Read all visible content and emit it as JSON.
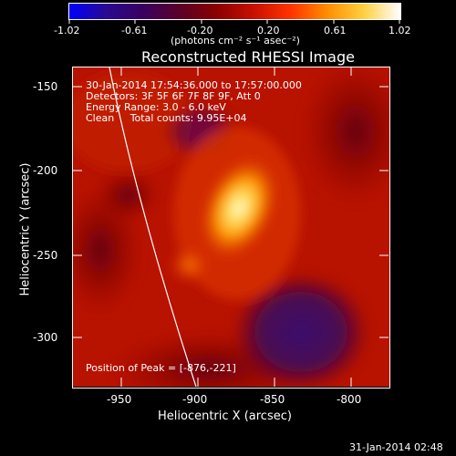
{
  "colorbar": {
    "tick_labels": [
      "-1.02",
      "-0.61",
      "-0.20",
      "0.20",
      "0.61",
      "1.02"
    ],
    "unit_label": "(photons cm⁻² s⁻¹ asec⁻²)",
    "stops": [
      "#0000ff",
      "#2a0a90",
      "#3a0060",
      "#5a0028",
      "#8a0000",
      "#c81000",
      "#ff3200",
      "#ff8c00",
      "#ffd040",
      "#ffffff"
    ]
  },
  "image": {
    "title": "Reconstructed RHESSI Image",
    "info_lines": [
      "30-Jan-2014 17:54:36.000 to 17:57:00.000",
      "Detectors: 3F 5F 6F 7F 8F 9F, Att 0",
      "Energy Range: 3.0 - 6.0 keV",
      "Clean     Total counts: 9.95E+04"
    ],
    "peak_text": "Position of Peak = [-876,-221]",
    "x_axis": {
      "label": "Heliocentric X (arcsec)",
      "ticks": [
        "-950",
        "-900",
        "-850",
        "-800"
      ]
    },
    "y_axis": {
      "label": "Heliocentric Y (arcsec)",
      "ticks": [
        "-150",
        "-200",
        "-250",
        "-300"
      ]
    }
  },
  "timestamp": "31-Jan-2014 02:48"
}
